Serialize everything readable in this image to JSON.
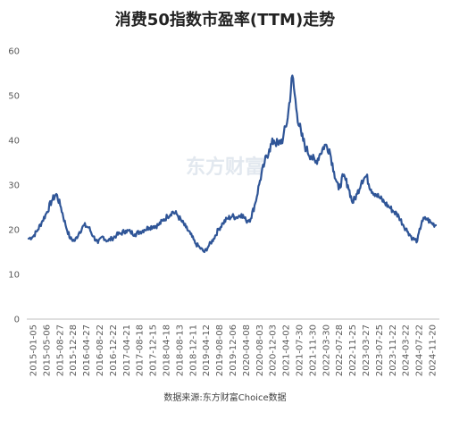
{
  "chart_data": {
    "type": "line",
    "title": "消费50指数市盈率(TTM)走势",
    "source": "数据来源:东方财富Choice数据",
    "watermark": "东方财富",
    "xlabel": "",
    "ylabel": "",
    "ylim": [
      0,
      60
    ],
    "yticks": [
      0,
      10,
      20,
      30,
      40,
      50,
      60
    ],
    "grid": false,
    "legend": "none",
    "line_color": "#2f5597",
    "x_tick_labels": [
      "2015-01-05",
      "2015-05-06",
      "2015-08-27",
      "2015-12-28",
      "2016-04-27",
      "2016-08-22",
      "2016-12-22",
      "2017-04-21",
      "2017-08-18",
      "2017-12-15",
      "2018-04-18",
      "2018-08-13",
      "2018-12-11",
      "2019-04-12",
      "2019-08-08",
      "2019-12-06",
      "2020-04-08",
      "2020-08-03",
      "2020-12-03",
      "2021-04-02",
      "2021-07-30",
      "2021-11-30",
      "2022-03-30",
      "2022-07-28",
      "2022-11-25",
      "2023-03-27",
      "2023-07-25",
      "2023-11-22",
      "2024-03-22",
      "2024-07-22",
      "2024-11-20"
    ],
    "series": [
      {
        "values": [
          18.0,
          18.5,
          20.0,
          22.0,
          24.0,
          26.5,
          28.0,
          25.0,
          21.0,
          18.0,
          17.5,
          19.5,
          21.0,
          20.5,
          18.5,
          17.0,
          18.5,
          17.5,
          18.0,
          18.8,
          19.2,
          19.8,
          19.5,
          19.0,
          19.5,
          20.0,
          20.5,
          20.8,
          21.0,
          22.0,
          23.0,
          24.0,
          23.5,
          22.0,
          20.5,
          19.0,
          17.0,
          16.0,
          15.0,
          16.5,
          18.0,
          20.0,
          21.5,
          22.5,
          23.0,
          22.8,
          23.5,
          22.0,
          22.5,
          26.0,
          31.0,
          35.0,
          38.0,
          40.0,
          39.0,
          40.5,
          45.0,
          54.5,
          46.0,
          41.0,
          38.0,
          36.5,
          35.0,
          37.0,
          39.0,
          38.0,
          33.0,
          29.0,
          32.0,
          30.0,
          26.0,
          28.0,
          31.0,
          32.0,
          29.0,
          28.0,
          27.0,
          26.0,
          25.0,
          24.0,
          23.0,
          21.0,
          19.5,
          18.0,
          17.5,
          22.0,
          22.5,
          21.5,
          21.0
        ]
      }
    ]
  }
}
